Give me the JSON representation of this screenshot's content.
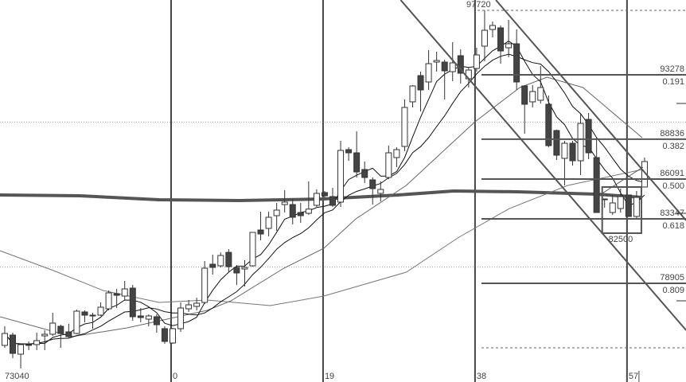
{
  "chart_data": {
    "type": "candlestick",
    "top_label": "97720",
    "low_label": "73040",
    "x_tick_labels": [
      {
        "index": 0,
        "label": "0"
      },
      {
        "index": 19,
        "label": "19"
      },
      {
        "index": 38,
        "label": "38"
      },
      {
        "index": 57,
        "label": "57"
      }
    ],
    "first_index": -21,
    "candles_ohlc": [
      [
        74624,
        75940,
        74459,
        75447
      ],
      [
        75337,
        75502,
        73746,
        74075
      ],
      [
        74020,
        74679,
        73033,
        74679
      ],
      [
        74624,
        74898,
        74294,
        74679
      ],
      [
        74679,
        75502,
        74294,
        74953
      ],
      [
        75282,
        75667,
        74294,
        75392
      ],
      [
        75392,
        76873,
        75282,
        76160
      ],
      [
        75940,
        76050,
        74459,
        75447
      ],
      [
        75557,
        76105,
        75118,
        75227
      ],
      [
        75447,
        77093,
        75392,
        76983
      ],
      [
        76928,
        77038,
        76215,
        76708
      ],
      [
        76708,
        76873,
        75776,
        76654
      ],
      [
        76708,
        77586,
        76654,
        77257
      ],
      [
        77147,
        78409,
        77038,
        78244
      ],
      [
        78189,
        78518,
        77202,
        78079
      ],
      [
        78025,
        79067,
        77751,
        78518
      ],
      [
        78572,
        78793,
        76325,
        76599
      ],
      [
        76654,
        77202,
        76215,
        76544
      ],
      [
        76434,
        76763,
        75940,
        76654
      ],
      [
        76599,
        76763,
        75502,
        76050
      ],
      [
        75776,
        75940,
        74734,
        74898
      ],
      [
        74788,
        75831,
        74734,
        75776
      ],
      [
        75776,
        77586,
        75557,
        77202
      ],
      [
        77147,
        77751,
        76928,
        77421
      ],
      [
        77312,
        77915,
        77038,
        77531
      ],
      [
        77586,
        80439,
        77476,
        79945
      ],
      [
        80220,
        80878,
        79506,
        80000
      ],
      [
        80110,
        81036,
        80000,
        80823
      ],
      [
        81036,
        81262,
        79671,
        80055
      ],
      [
        80000,
        80165,
        78793,
        79616
      ],
      [
        79890,
        80494,
        78683,
        80000
      ],
      [
        80110,
        82414,
        80055,
        82414
      ],
      [
        82578,
        83841,
        81865,
        82304
      ],
      [
        82688,
        83841,
        82140,
        83456
      ],
      [
        83566,
        84444,
        82524,
        83950
      ],
      [
        84332,
        85321,
        83784,
        84499
      ],
      [
        84332,
        84718,
        82962,
        83456
      ],
      [
        83784,
        84444,
        83072,
        83566
      ],
      [
        83729,
        85925,
        83619,
        84018
      ],
      [
        84279,
        85376,
        84169,
        85103
      ],
      [
        85157,
        85267,
        84827,
        84937
      ],
      [
        84882,
        85486,
        84169,
        84279
      ],
      [
        84499,
        88723,
        84169,
        88065
      ],
      [
        88120,
        88284,
        87351,
        87900
      ],
      [
        87900,
        89381,
        86199,
        86583
      ],
      [
        86748,
        87297,
        85815,
        86199
      ],
      [
        86035,
        86199,
        84332,
        85431
      ],
      [
        85103,
        85925,
        84553,
        85376
      ],
      [
        86199,
        88394,
        86090,
        87900
      ],
      [
        87570,
        88284,
        86912,
        88120
      ],
      [
        88339,
        91576,
        88010,
        91027
      ],
      [
        91413,
        92563,
        91027,
        92508
      ],
      [
        93221,
        93496,
        90753,
        92234
      ],
      [
        92783,
        94977,
        92234,
        94044
      ],
      [
        94154,
        94867,
        93496,
        94264
      ],
      [
        94154,
        94319,
        91576,
        93551
      ],
      [
        93496,
        95525,
        92837,
        94099
      ],
      [
        94593,
        95032,
        92673,
        93386
      ],
      [
        93002,
        93770,
        92399,
        93605
      ],
      [
        93715,
        95141,
        93496,
        94648
      ],
      [
        95251,
        97720,
        94209,
        96348
      ],
      [
        96403,
        96952,
        95855,
        96677
      ],
      [
        96513,
        96677,
        94044,
        94922
      ],
      [
        95141,
        97062,
        94483,
        95416
      ],
      [
        95416,
        96403,
        92234,
        92783
      ],
      [
        92508,
        92563,
        89217,
        91246
      ],
      [
        91413,
        92563,
        91027,
        92124
      ],
      [
        91521,
        93880,
        91301,
        92399
      ],
      [
        91246,
        91850,
        88284,
        88394
      ],
      [
        89436,
        89491,
        87406,
        87735
      ],
      [
        87516,
        88723,
        85651,
        88558
      ],
      [
        88558,
        88723,
        87025,
        87351
      ],
      [
        87351,
        90588,
        86364,
        89930
      ],
      [
        90204,
        90643,
        87461,
        87900
      ],
      [
        87570,
        88942,
        83784,
        83784
      ],
      [
        84718,
        84718,
        84115,
        84718
      ],
      [
        83784,
        84993,
        83619,
        84444
      ],
      [
        84060,
        85431,
        83784,
        84882
      ],
      [
        84993,
        84993,
        83511,
        83511
      ],
      [
        83511,
        85267,
        83347,
        84827
      ],
      [
        85541,
        87570,
        85541,
        87297
      ]
    ],
    "short_moving_averages": [
      5,
      10
    ],
    "moving_average_lines": [
      {
        "style": "thick",
        "color": "#555555",
        "points": [
          [
            -21.6,
            84992
          ],
          [
            -11.6,
            84937
          ],
          [
            -1.7,
            84663
          ],
          [
            8.3,
            84608
          ],
          [
            18.8,
            84718
          ],
          [
            28.2,
            84993
          ],
          [
            35.1,
            85267
          ],
          [
            43.1,
            85212
          ],
          [
            53,
            85047
          ],
          [
            58.7,
            84827
          ]
        ]
      },
      {
        "style": "thin-gray",
        "color": "#666666",
        "points": [
          [
            -21.6,
            76600
          ],
          [
            -12.6,
            75227
          ],
          [
            -5.7,
            75830
          ],
          [
            4.3,
            77038
          ],
          [
            7.3,
            77697
          ],
          [
            13.9,
            79945
          ],
          [
            18.9,
            81317
          ],
          [
            22.9,
            83347
          ],
          [
            29.2,
            85651
          ],
          [
            37.8,
            90040
          ],
          [
            43.4,
            92399
          ],
          [
            46.8,
            93112
          ],
          [
            51.3,
            92399
          ],
          [
            58.7,
            88942
          ]
        ]
      },
      {
        "style": "thin-gray",
        "color": "#777777",
        "points": [
          [
            -21.6,
            81152
          ],
          [
            -14.9,
            79780
          ],
          [
            -8.7,
            78409
          ],
          [
            -1.7,
            77586
          ],
          [
            4.3,
            77751
          ],
          [
            12.2,
            77366
          ],
          [
            18.9,
            78025
          ],
          [
            29.2,
            79671
          ],
          [
            35.8,
            82085
          ],
          [
            42.1,
            84058
          ],
          [
            49.4,
            85651
          ],
          [
            58.7,
            86748
          ]
        ]
      }
    ],
    "fibonacci": {
      "high": 97720,
      "levels": [
        {
          "price": "93278",
          "ratio": "0.191",
          "value": 93278
        },
        {
          "price": "88836",
          "ratio": "0.382",
          "value": 88836
        },
        {
          "price": "86091",
          "ratio": "0.500",
          "value": 86091
        },
        {
          "price": "83347",
          "ratio": "0.618",
          "value": 83347
        },
        {
          "price": "78905",
          "ratio": "0.809",
          "value": 78905
        }
      ],
      "base_level": 74462
    },
    "trendlines": [
      [
        [
          28.5,
          98433
        ],
        [
          64.2,
          75666
        ]
      ],
      [
        [
          40.4,
          98433
        ],
        [
          64.2,
          83237
        ]
      ],
      [
        [
          53.7,
          85102
        ],
        [
          58.8,
          86913
        ]
      ]
    ],
    "box": {
      "from_index": 53.7,
      "to_index": 58.6,
      "top": 85541,
      "bottom": 82359,
      "label": "82500"
    },
    "grid_dotted_prices": [
      90006,
      80022
    ],
    "vertical_line_indices": [
      0,
      19,
      38,
      57
    ],
    "colors": {
      "bear": "#444444",
      "bull": "#ffffff",
      "outline": "#333333",
      "lines": "#555555"
    }
  }
}
